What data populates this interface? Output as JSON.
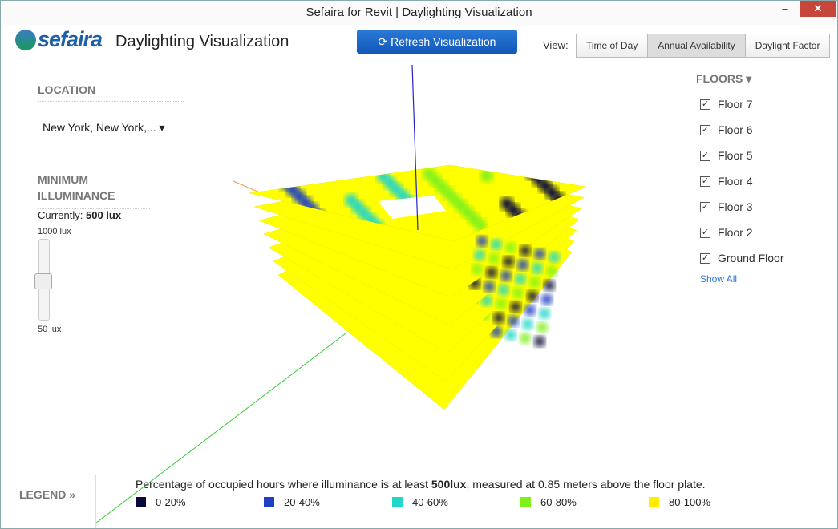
{
  "window": {
    "title": "Sefaira for Revit | Daylighting Visualization"
  },
  "header": {
    "logo": "sefaira",
    "title": "Daylighting Visualization",
    "refresh_button": "Refresh Visualization",
    "view_label": "View:",
    "view_tabs": [
      "Time of Day",
      "Annual Availability",
      "Daylight Factor"
    ]
  },
  "location": {
    "heading": "LOCATION",
    "value": "New York, New York,..."
  },
  "illuminance": {
    "heading": "MINIMUM ILLUMINANCE",
    "current_label": "Currently:",
    "current_value": "500 lux",
    "max_label": "1000 lux",
    "min_label": "50 lux"
  },
  "floors": {
    "heading": "FLOORS",
    "items": [
      "Floor 7",
      "Floor 6",
      "Floor 5",
      "Floor 4",
      "Floor 3",
      "Floor 2",
      "Ground Floor"
    ],
    "show_all": "Show All"
  },
  "legend": {
    "heading": "LEGEND »",
    "description": [
      "Percentage of occupied hours where illuminance is at least ",
      "500lux",
      ", measured at 0.85 meters above the floor plate."
    ],
    "items": [
      {
        "label": "0-20%",
        "color": "#0a0a3a"
      },
      {
        "label": "20-40%",
        "color": "#1f3fc4"
      },
      {
        "label": "40-60%",
        "color": "#22d6c8"
      },
      {
        "label": "60-80%",
        "color": "#7ef01a"
      },
      {
        "label": "80-100%",
        "color": "#ffee00"
      }
    ]
  }
}
